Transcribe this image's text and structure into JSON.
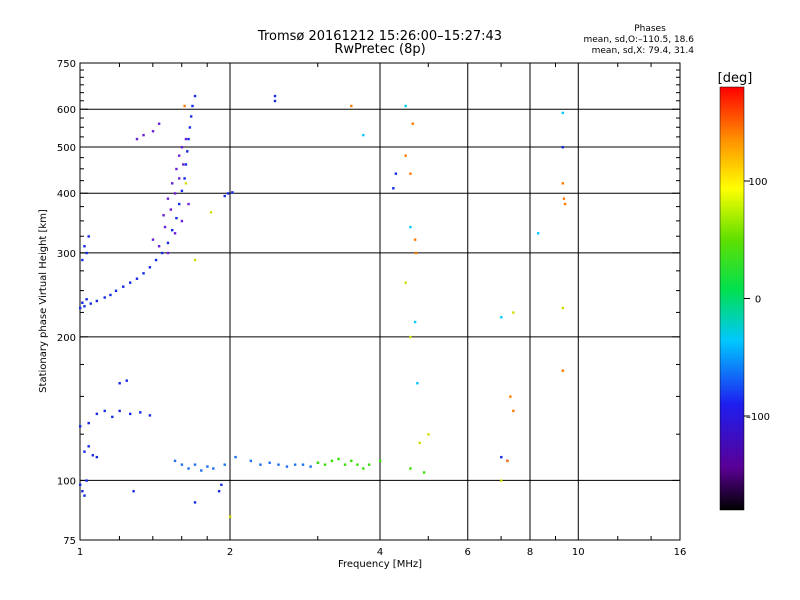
{
  "chart_data": {
    "type": "scatter",
    "title": "Tromsø 20161212 15:26:00–15:27:43",
    "subtitle": "RwPretec (8p)",
    "phases_header": "Phases",
    "phases_line1": "mean, sd,O:–110.5, 18.6",
    "phases_line2": "mean, sd,X:  79.4, 31.4",
    "xlabel": "Frequency [MHz]",
    "ylabel": "Stationary phase Virtual Height [km]",
    "x_scale": "log",
    "y_scale": "log",
    "xlim": [
      1,
      16
    ],
    "ylim": [
      75,
      750
    ],
    "x_ticks": [
      1,
      2,
      4,
      6,
      8,
      10,
      16
    ],
    "x_tick_labels": [
      "1",
      "2",
      "4",
      "6",
      "8",
      "10",
      "16"
    ],
    "y_ticks": [
      75,
      100,
      200,
      300,
      400,
      500,
      600,
      750
    ],
    "y_tick_labels": [
      "75",
      "100",
      "200",
      "300",
      "400",
      "500",
      "600",
      "750"
    ],
    "y_minor_ticks": [
      125,
      150,
      175,
      225,
      250,
      275,
      325,
      350,
      375,
      425,
      450,
      475,
      525,
      550,
      575,
      625,
      650,
      675,
      700,
      725
    ],
    "grid": true,
    "colorbar": {
      "label": "[deg]",
      "range": [
        -180,
        180
      ],
      "ticks": [
        100,
        0,
        -100
      ],
      "tick_labels": [
        "100",
        "0",
        "–100"
      ]
    },
    "series": [
      {
        "points": [
          [
            1.0,
            230
          ],
          [
            1.01,
            236
          ],
          [
            1.02,
            232
          ],
          [
            1.03,
            240
          ],
          [
            1.05,
            235
          ],
          [
            1.08,
            238
          ],
          [
            1.12,
            242
          ],
          [
            1.15,
            245
          ],
          [
            1.18,
            250
          ],
          [
            1.22,
            255
          ],
          [
            1.26,
            260
          ],
          [
            1.3,
            265
          ],
          [
            1.34,
            272
          ],
          [
            1.38,
            280
          ],
          [
            1.42,
            290
          ],
          [
            1.46,
            300
          ],
          [
            1.5,
            315
          ],
          [
            1.53,
            335
          ],
          [
            1.56,
            355
          ],
          [
            1.58,
            380
          ],
          [
            1.6,
            405
          ],
          [
            1.62,
            430
          ],
          [
            1.63,
            460
          ],
          [
            1.64,
            490
          ],
          [
            1.65,
            520
          ],
          [
            1.66,
            550
          ],
          [
            1.67,
            580
          ],
          [
            1.68,
            610
          ],
          [
            1.7,
            640
          ],
          [
            1.02,
            310
          ],
          [
            1.04,
            325
          ],
          [
            1.03,
            300
          ],
          [
            1.01,
            290
          ],
          [
            1.0,
            98
          ],
          [
            1.01,
            95
          ],
          [
            1.03,
            100
          ],
          [
            1.02,
            93
          ],
          [
            1.0,
            130
          ],
          [
            1.04,
            132
          ],
          [
            1.08,
            138
          ],
          [
            1.12,
            140
          ],
          [
            1.16,
            136
          ],
          [
            1.2,
            140
          ],
          [
            1.26,
            138
          ],
          [
            1.32,
            139
          ],
          [
            1.38,
            137
          ],
          [
            1.02,
            115
          ],
          [
            1.04,
            118
          ],
          [
            1.06,
            113
          ],
          [
            1.08,
            112
          ],
          [
            1.2,
            160
          ],
          [
            1.24,
            162
          ],
          [
            1.28,
            95
          ],
          [
            1.7,
            90
          ],
          [
            1.9,
            95
          ],
          [
            1.92,
            98
          ],
          [
            1.98,
            400
          ],
          [
            1.95,
            395
          ],
          [
            2.02,
            402
          ],
          [
            2.46,
            640
          ],
          [
            2.46,
            625
          ],
          [
            4.25,
            410
          ],
          [
            4.3,
            440
          ],
          [
            7.2,
            110
          ],
          [
            7.0,
            112
          ],
          [
            9.3,
            500
          ]
        ]
      },
      {
        "points": [
          [
            1.3,
            520
          ],
          [
            1.34,
            530
          ],
          [
            1.4,
            540
          ],
          [
            1.44,
            560
          ],
          [
            1.47,
            360
          ],
          [
            1.5,
            390
          ],
          [
            1.53,
            420
          ],
          [
            1.56,
            450
          ],
          [
            1.58,
            480
          ],
          [
            1.6,
            500
          ],
          [
            1.63,
            520
          ],
          [
            1.48,
            340
          ],
          [
            1.52,
            370
          ],
          [
            1.55,
            400
          ],
          [
            1.58,
            430
          ],
          [
            1.61,
            460
          ],
          [
            1.4,
            320
          ],
          [
            1.44,
            310
          ],
          [
            1.5,
            300
          ],
          [
            1.55,
            330
          ],
          [
            1.6,
            350
          ],
          [
            1.65,
            380
          ]
        ]
      },
      {
        "points": [
          [
            1.55,
            110
          ],
          [
            1.6,
            108
          ],
          [
            1.65,
            106
          ],
          [
            1.7,
            108
          ],
          [
            1.75,
            105
          ],
          [
            1.8,
            107
          ],
          [
            1.85,
            106
          ],
          [
            2.2,
            110
          ],
          [
            2.3,
            108
          ],
          [
            2.4,
            109
          ],
          [
            2.5,
            108
          ],
          [
            2.6,
            107
          ],
          [
            2.7,
            108
          ],
          [
            2.8,
            108
          ],
          [
            2.9,
            107
          ],
          [
            3.0,
            109
          ],
          [
            1.95,
            108
          ],
          [
            2.05,
            112
          ]
        ]
      },
      {
        "points": [
          [
            3.0,
            109
          ],
          [
            3.1,
            108
          ],
          [
            3.2,
            110
          ],
          [
            3.3,
            111
          ],
          [
            3.4,
            108
          ],
          [
            3.5,
            110
          ],
          [
            3.6,
            108
          ],
          [
            3.7,
            106
          ],
          [
            3.8,
            108
          ],
          [
            4.0,
            110
          ],
          [
            4.6,
            106
          ],
          [
            4.9,
            104
          ]
        ]
      },
      {
        "points": [
          [
            4.5,
            480
          ],
          [
            4.6,
            440
          ],
          [
            4.7,
            320
          ],
          [
            4.72,
            300
          ],
          [
            4.65,
            560
          ],
          [
            3.5,
            610
          ],
          [
            1.62,
            610
          ],
          [
            7.2,
            110
          ],
          [
            7.3,
            150
          ],
          [
            7.4,
            140
          ],
          [
            9.3,
            420
          ],
          [
            9.35,
            390
          ],
          [
            9.4,
            380
          ],
          [
            9.3,
            170
          ]
        ]
      },
      {
        "points": [
          [
            1.63,
            420
          ],
          [
            1.83,
            365
          ],
          [
            1.7,
            290
          ],
          [
            2.0,
            84
          ],
          [
            4.5,
            260
          ],
          [
            4.6,
            200
          ],
          [
            4.8,
            120
          ],
          [
            5.0,
            125
          ],
          [
            7.0,
            100
          ],
          [
            7.4,
            225
          ],
          [
            9.3,
            230
          ]
        ]
      },
      {
        "points": [
          [
            4.5,
            610
          ],
          [
            4.6,
            340
          ],
          [
            4.7,
            215
          ],
          [
            4.75,
            160
          ],
          [
            7.0,
            220
          ],
          [
            8.3,
            330
          ],
          [
            9.3,
            590
          ],
          [
            3.7,
            530
          ]
        ]
      }
    ]
  },
  "colors": {
    "series": [
      "#1428e6",
      "#6a1fd8",
      "#1e6ef0",
      "#38e000",
      "#ff7a00",
      "#cfe000",
      "#00c8ff"
    ]
  }
}
